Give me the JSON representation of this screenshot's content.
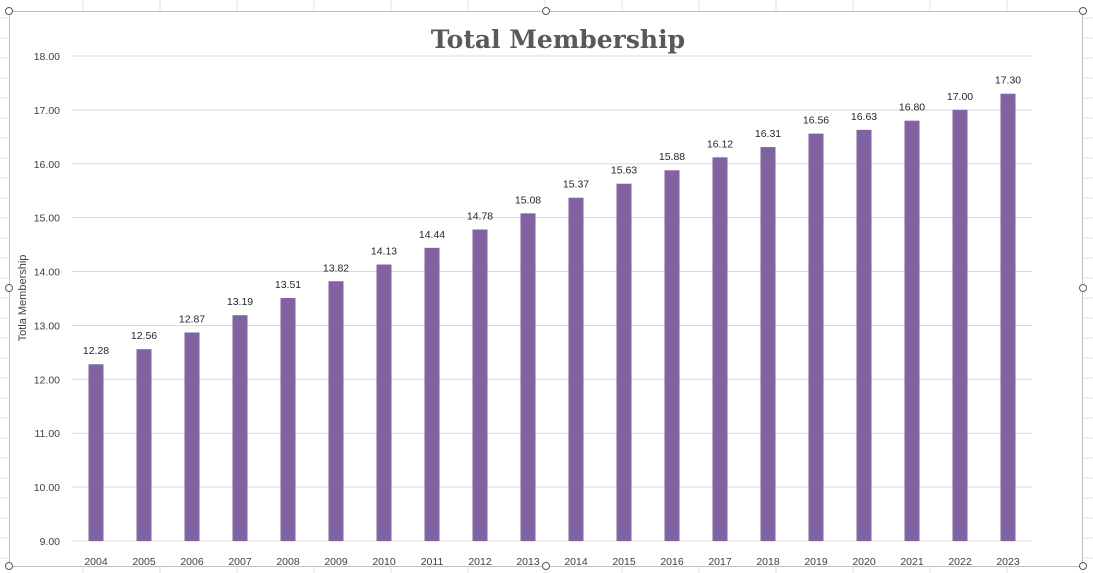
{
  "chart_data": {
    "type": "bar",
    "title": "Total Membership",
    "xlabel": "",
    "ylabel": "Totla Membership",
    "categories": [
      "2004",
      "2005",
      "2006",
      "2007",
      "2008",
      "2009",
      "2010",
      "2011",
      "2012",
      "2013",
      "2014",
      "2015",
      "2016",
      "2017",
      "2018",
      "2019",
      "2020",
      "2021",
      "2022",
      "2023"
    ],
    "series": [
      {
        "values": [
          12.28,
          12.56,
          12.87,
          13.19,
          13.51,
          13.82,
          14.13,
          14.44,
          14.78,
          15.08,
          15.37,
          15.63,
          15.88,
          16.12,
          16.31,
          16.56,
          16.63,
          16.8,
          17.0,
          17.3
        ]
      }
    ],
    "ylim": [
      9,
      18
    ],
    "y_ticks": [
      "9.00",
      "10.00",
      "11.00",
      "12.00",
      "13.00",
      "14.00",
      "15.00",
      "16.00",
      "17.00",
      "18.00"
    ],
    "data_labels": [
      "12.28",
      "12.56",
      "12.87",
      "13.19",
      "13.51",
      "13.82",
      "14.13",
      "14.44",
      "14.78",
      "15.08",
      "15.37",
      "15.63",
      "15.88",
      "16.12",
      "16.31",
      "16.56",
      "16.63",
      "16.80",
      "17.00",
      "17.30"
    ],
    "grid": true,
    "legend": "none",
    "colors": {
      "bar": "#8064a2",
      "gridline": "#d9d9d9",
      "title": "#595959",
      "sheet_grid": "#e1e1e1"
    }
  }
}
